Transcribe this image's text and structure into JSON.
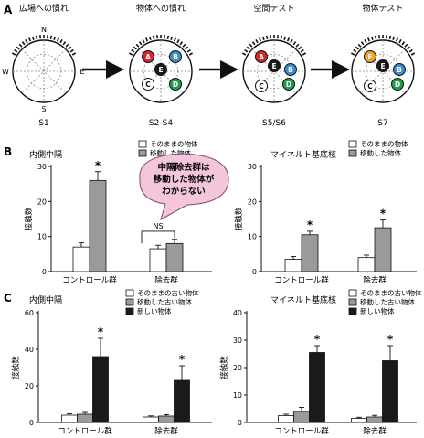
{
  "panelA": {
    "label": "A",
    "stages": [
      {
        "title": "広場への慣れ",
        "session": "S1",
        "compass": [
          "N",
          "S",
          "W",
          "E"
        ],
        "objects": []
      },
      {
        "title": "物体への慣れ",
        "session": "S2-S4",
        "objects": [
          {
            "letter": "A",
            "color": "#d7262b"
          },
          {
            "letter": "B",
            "color": "#3a8fd0"
          },
          {
            "letter": "E",
            "color": "#1a1a1a"
          },
          {
            "letter": "C",
            "color": "#ffffff"
          },
          {
            "letter": "D",
            "color": "#1f9c4a"
          }
        ]
      },
      {
        "title": "空間テスト",
        "session": "S5/S6",
        "objects": [
          {
            "letter": "A",
            "color": "#d7262b"
          },
          {
            "letter": "E",
            "color": "#1a1a1a"
          },
          {
            "letter": "B",
            "color": "#3a8fd0"
          },
          {
            "letter": "C",
            "color": "#ffffff"
          },
          {
            "letter": "D",
            "color": "#1f9c4a"
          }
        ]
      },
      {
        "title": "物体テスト",
        "session": "S7",
        "objects": [
          {
            "letter": "F",
            "color": "#f0a030"
          },
          {
            "letter": "E",
            "color": "#1a1a1a"
          },
          {
            "letter": "B",
            "color": "#3a8fd0"
          },
          {
            "letter": "C",
            "color": "#ffffff"
          },
          {
            "letter": "D",
            "color": "#1f9c4a"
          }
        ]
      }
    ]
  },
  "callout": {
    "text": [
      "中隔除去群は",
      "移動した物体が",
      "わからない"
    ],
    "color": "#f4c6dc",
    "ns": "NS"
  },
  "panelB_label": "B",
  "panelC_label": "C",
  "colors": {
    "unmoved": "#ffffff",
    "moved": "#9a9a9a",
    "novel": "#1a1a1a"
  },
  "chart_data": [
    {
      "id": "B-left",
      "type": "bar",
      "title": "内側中隔",
      "ylabel": "接触数",
      "ylim": [
        0,
        30
      ],
      "yticks": [
        0,
        10,
        20,
        30
      ],
      "categories": [
        "コントロール群",
        "除去群"
      ],
      "series": [
        {
          "name": "そのままの物体",
          "color": "#ffffff",
          "values": [
            7,
            6.5
          ],
          "errors": [
            1.2,
            1.0
          ]
        },
        {
          "name": "移動した物体",
          "color": "#9a9a9a",
          "values": [
            26,
            8
          ],
          "errors": [
            2.5,
            1.2
          ]
        }
      ],
      "significance": [
        "*",
        ""
      ]
    },
    {
      "id": "B-right",
      "type": "bar",
      "title": "マイネルト基底核",
      "ylabel": "接触数",
      "ylim": [
        0,
        30
      ],
      "yticks": [
        0,
        10,
        20,
        30
      ],
      "categories": [
        "コントロール群",
        "除去群"
      ],
      "series": [
        {
          "name": "そのままの物体",
          "color": "#ffffff",
          "values": [
            3.5,
            4
          ],
          "errors": [
            0.8,
            0.7
          ]
        },
        {
          "name": "移動した物体",
          "color": "#9a9a9a",
          "values": [
            10.5,
            12.5
          ],
          "errors": [
            1.0,
            2.2
          ]
        }
      ],
      "significance": [
        "*",
        "*"
      ]
    },
    {
      "id": "C-left",
      "type": "bar",
      "title": "内側中隔",
      "ylabel": "接触数",
      "ylim": [
        0,
        60
      ],
      "yticks": [
        0,
        20,
        40,
        60
      ],
      "categories": [
        "コントロール群",
        "除去群"
      ],
      "series": [
        {
          "name": "そのままの古い物体",
          "color": "#ffffff",
          "values": [
            4,
            3
          ],
          "errors": [
            0.8,
            0.6
          ]
        },
        {
          "name": "移動した古い物体",
          "color": "#9a9a9a",
          "values": [
            4.5,
            3.5
          ],
          "errors": [
            1.0,
            0.8
          ]
        },
        {
          "name": "新しい物体",
          "color": "#1a1a1a",
          "values": [
            36,
            23
          ],
          "errors": [
            10,
            8
          ]
        }
      ],
      "significance": [
        "*",
        "*"
      ]
    },
    {
      "id": "C-right",
      "type": "bar",
      "title": "マイネルト基底核",
      "ylabel": "接触数",
      "ylim": [
        0,
        40
      ],
      "yticks": [
        0,
        10,
        20,
        30,
        40
      ],
      "categories": [
        "コントロール群",
        "除去群"
      ],
      "series": [
        {
          "name": "そのままの古い物体",
          "color": "#ffffff",
          "values": [
            2.5,
            1.5
          ],
          "errors": [
            0.5,
            0.4
          ]
        },
        {
          "name": "移動した古い物体",
          "color": "#9a9a9a",
          "values": [
            4,
            2
          ],
          "errors": [
            1.5,
            0.6
          ]
        },
        {
          "name": "新しい物体",
          "color": "#1a1a1a",
          "values": [
            25.5,
            22.5
          ],
          "errors": [
            2.5,
            5.5
          ]
        }
      ],
      "significance": [
        "*",
        "*"
      ]
    }
  ]
}
